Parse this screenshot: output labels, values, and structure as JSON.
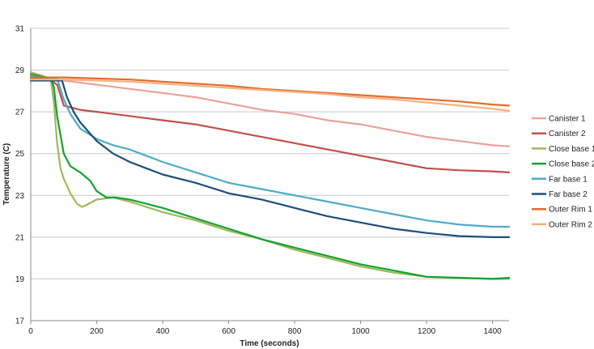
{
  "chart_data": {
    "type": "line",
    "title": "",
    "xlabel": "Time (seconds)",
    "ylabel": "Temperature (C)",
    "xlim": [
      0,
      1450
    ],
    "ylim": [
      17,
      31
    ],
    "x_ticks": [
      0,
      200,
      400,
      600,
      800,
      1000,
      1200,
      1400
    ],
    "y_ticks": [
      17,
      19,
      21,
      23,
      25,
      27,
      29,
      31
    ],
    "grid": "horizontal",
    "legend_position": "right",
    "series": [
      {
        "name": "Canister 1",
        "color": "#e8a29e",
        "x": [
          0,
          50,
          100,
          150,
          200,
          300,
          400,
          500,
          600,
          700,
          800,
          900,
          1000,
          1100,
          1200,
          1300,
          1400,
          1450
        ],
        "y": [
          28.7,
          28.6,
          28.5,
          28.4,
          28.3,
          28.1,
          27.9,
          27.7,
          27.4,
          27.1,
          26.9,
          26.6,
          26.4,
          26.1,
          25.8,
          25.6,
          25.4,
          25.35
        ]
      },
      {
        "name": "Canister 2",
        "color": "#c0504d",
        "x": [
          0,
          50,
          80,
          100,
          150,
          200,
          250,
          300,
          400,
          500,
          600,
          700,
          800,
          900,
          1000,
          1100,
          1200,
          1300,
          1400,
          1450
        ],
        "y": [
          28.6,
          28.6,
          28.3,
          27.3,
          27.1,
          27.0,
          26.9,
          26.8,
          26.6,
          26.4,
          26.1,
          25.8,
          25.5,
          25.2,
          24.9,
          24.6,
          24.3,
          24.2,
          24.15,
          24.1
        ]
      },
      {
        "name": "Close base 1",
        "color": "#9bbb59",
        "x": [
          0,
          60,
          70,
          80,
          90,
          100,
          120,
          140,
          155,
          170,
          200,
          250,
          300,
          400,
          500,
          600,
          700,
          800,
          900,
          1000,
          1100,
          1200,
          1300,
          1400,
          1450
        ],
        "y": [
          28.9,
          28.6,
          27.5,
          25.5,
          24.3,
          23.8,
          23.1,
          22.6,
          22.45,
          22.55,
          22.8,
          22.9,
          22.7,
          22.2,
          21.8,
          21.3,
          20.9,
          20.4,
          20.0,
          19.6,
          19.3,
          19.1,
          19.05,
          19.0,
          19.0
        ]
      },
      {
        "name": "Close base 2",
        "color": "#16a030",
        "x": [
          0,
          60,
          70,
          80,
          100,
          120,
          150,
          180,
          200,
          230,
          260,
          300,
          350,
          400,
          500,
          600,
          700,
          800,
          900,
          1000,
          1100,
          1200,
          1300,
          1400,
          1450
        ],
        "y": [
          28.8,
          28.6,
          28.2,
          26.8,
          25.0,
          24.4,
          24.1,
          23.7,
          23.2,
          22.9,
          22.9,
          22.8,
          22.6,
          22.4,
          21.9,
          21.4,
          20.9,
          20.5,
          20.1,
          19.7,
          19.4,
          19.1,
          19.05,
          19.0,
          19.05
        ]
      },
      {
        "name": "Far base 1",
        "color": "#4bacc6",
        "x": [
          0,
          80,
          100,
          120,
          150,
          200,
          250,
          300,
          350,
          400,
          500,
          600,
          700,
          800,
          900,
          1000,
          1100,
          1200,
          1300,
          1400,
          1450
        ],
        "y": [
          28.7,
          28.6,
          27.6,
          26.9,
          26.2,
          25.7,
          25.4,
          25.2,
          24.9,
          24.6,
          24.1,
          23.6,
          23.3,
          23.0,
          22.7,
          22.4,
          22.1,
          21.8,
          21.6,
          21.5,
          21.5
        ]
      },
      {
        "name": "Far base 2",
        "color": "#1f4e79",
        "x": [
          0,
          95,
          110,
          130,
          150,
          200,
          250,
          300,
          350,
          400,
          500,
          600,
          700,
          800,
          900,
          1000,
          1100,
          1200,
          1300,
          1400,
          1450
        ],
        "y": [
          28.5,
          28.5,
          27.7,
          27.0,
          26.5,
          25.6,
          25.0,
          24.6,
          24.3,
          24.0,
          23.6,
          23.1,
          22.8,
          22.4,
          22.0,
          21.7,
          21.4,
          21.2,
          21.05,
          21.0,
          21.0
        ]
      },
      {
        "name": "Outer Rim 1",
        "color": "#e36c2f",
        "x": [
          0,
          100,
          200,
          300,
          400,
          500,
          600,
          700,
          800,
          900,
          1000,
          1100,
          1200,
          1300,
          1400,
          1450
        ],
        "y": [
          28.65,
          28.65,
          28.6,
          28.55,
          28.45,
          28.35,
          28.25,
          28.1,
          28.0,
          27.9,
          27.8,
          27.7,
          27.6,
          27.5,
          27.35,
          27.3
        ]
      },
      {
        "name": "Outer Rim 2",
        "color": "#f4b183",
        "x": [
          0,
          100,
          200,
          300,
          400,
          500,
          600,
          700,
          800,
          900,
          1000,
          1100,
          1200,
          1300,
          1400,
          1450
        ],
        "y": [
          28.55,
          28.55,
          28.5,
          28.45,
          28.35,
          28.25,
          28.15,
          28.05,
          27.95,
          27.85,
          27.7,
          27.6,
          27.45,
          27.3,
          27.15,
          27.05
        ]
      }
    ]
  }
}
